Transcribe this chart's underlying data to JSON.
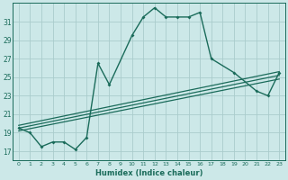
{
  "xlabel": "Humidex (Indice chaleur)",
  "bg_color": "#cce8e8",
  "grid_color": "#aacccc",
  "line_color": "#1a6b5a",
  "xlim": [
    -0.5,
    23.5
  ],
  "ylim": [
    16,
    33
  ],
  "yticks": [
    17,
    19,
    21,
    23,
    25,
    27,
    29,
    31
  ],
  "xticks": [
    0,
    1,
    2,
    3,
    4,
    5,
    6,
    7,
    8,
    9,
    10,
    11,
    12,
    13,
    14,
    15,
    16,
    17,
    18,
    19,
    20,
    21,
    22,
    23
  ],
  "main_x": [
    0,
    1,
    2,
    3,
    4,
    5,
    6,
    7,
    8,
    10,
    11,
    12,
    13,
    14,
    15,
    16,
    17,
    19,
    21,
    22,
    23
  ],
  "main_y": [
    19.5,
    19.0,
    17.5,
    18.0,
    18.0,
    17.2,
    18.5,
    26.5,
    24.2,
    29.5,
    31.5,
    32.5,
    31.5,
    31.5,
    31.5,
    32.0,
    27.0,
    25.5,
    23.5,
    23.0,
    25.5
  ],
  "trend1_x": [
    0,
    23
  ],
  "trend1_y": [
    19.2,
    24.8
  ],
  "trend2_x": [
    0,
    23
  ],
  "trend2_y": [
    19.5,
    25.2
  ],
  "trend3_x": [
    0,
    23
  ],
  "trend3_y": [
    19.8,
    25.6
  ]
}
